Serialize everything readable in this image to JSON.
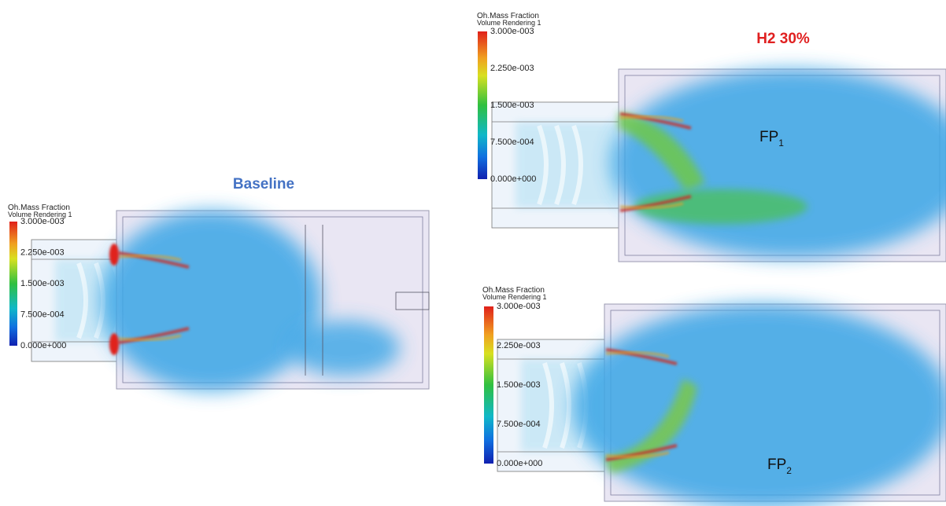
{
  "panels": [
    {
      "title": "Baseline",
      "legend": {
        "title": "Oh.Mass Fraction",
        "subtitle": "Volume Rendering 1",
        "ticks": [
          "3.000e-003",
          "2.250e-003",
          "1.500e-003",
          "7.500e-004",
          "0.000e+000"
        ]
      }
    },
    {
      "title": "H2 30%",
      "legend": {
        "title": "Oh.Mass Fraction",
        "subtitle": "Volume Rendering 1",
        "ticks": [
          "3.000e-003",
          "2.250e-003",
          "1.500e-003",
          "7.500e-004",
          "0.000e+000"
        ]
      },
      "label": {
        "text": "FP",
        "subscript": "1"
      }
    },
    {
      "legend": {
        "title": "Oh.Mass Fraction",
        "subtitle": "Volume Rendering 1",
        "ticks": [
          "3.000e-003",
          "2.250e-003",
          "1.500e-003",
          "7.500e-004",
          "0.000e+000"
        ]
      },
      "label": {
        "text": "FP",
        "subscript": "2"
      }
    }
  ]
}
